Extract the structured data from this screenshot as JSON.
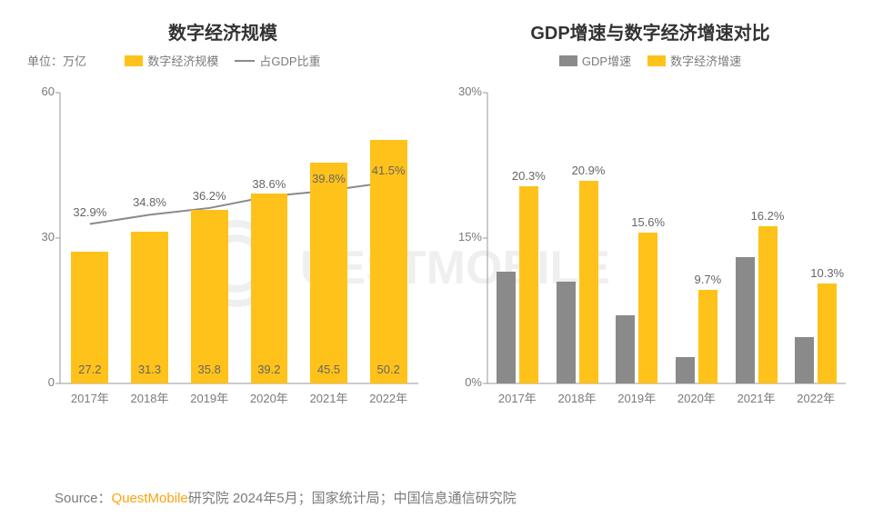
{
  "colors": {
    "bar_yellow": "#ffc21a",
    "bar_gray": "#8a8a8a",
    "line_gray": "#8a8a8a",
    "text_gray": "#7a7a7a",
    "axis": "#999999",
    "brand": "#fca311",
    "background": "#ffffff"
  },
  "chart_left": {
    "title": "数字经济规模",
    "unit_label": "单位：万亿",
    "legend": [
      {
        "label": "数字经济规模",
        "type": "bar",
        "color": "#ffc21a"
      },
      {
        "label": "占GDP比重",
        "type": "line",
        "color": "#8a8a8a"
      }
    ],
    "y": {
      "min": 0,
      "max": 60,
      "step": 30,
      "format": "plain"
    },
    "categories": [
      "2017年",
      "2018年",
      "2019年",
      "2020年",
      "2021年",
      "2022年"
    ],
    "bars": {
      "values": [
        27.2,
        31.3,
        35.8,
        39.2,
        45.5,
        50.2
      ],
      "labels": [
        "27.2",
        "31.3",
        "35.8",
        "39.2",
        "45.5",
        "50.2"
      ],
      "color": "#ffc21a",
      "label_inside": true
    },
    "line": {
      "values": [
        32.9,
        34.8,
        36.2,
        38.6,
        39.8,
        41.5
      ],
      "labels": [
        "32.9%",
        "34.8%",
        "36.2%",
        "38.6%",
        "39.8%",
        "41.5%"
      ],
      "color": "#8a8a8a",
      "stroke_width": 2
    }
  },
  "chart_right": {
    "title": "GDP增速与数字经济增速对比",
    "legend": [
      {
        "label": "GDP增速",
        "type": "bar",
        "color": "#8a8a8a"
      },
      {
        "label": "数字经济增速",
        "type": "bar",
        "color": "#ffc21a"
      }
    ],
    "y": {
      "min": 0,
      "max": 30,
      "step": 15,
      "format": "percent"
    },
    "categories": [
      "2017年",
      "2018年",
      "2019年",
      "2020年",
      "2021年",
      "2022年"
    ],
    "series_a": {
      "name": "GDP增速",
      "color": "#8a8a8a",
      "values": [
        11.5,
        10.5,
        7.0,
        2.7,
        13.0,
        4.8
      ]
    },
    "series_b": {
      "name": "数字经济增速",
      "color": "#ffc21a",
      "values": [
        20.3,
        20.9,
        15.6,
        9.7,
        16.2,
        10.3
      ],
      "labels": [
        "20.3%",
        "20.9%",
        "15.6%",
        "9.7%",
        "16.2%",
        "10.3%"
      ]
    }
  },
  "source": {
    "prefix": "Source：",
    "brand": "QuestMobile",
    "rest": "研究院 2024年5月；国家统计局；中国信息通信研究院"
  }
}
